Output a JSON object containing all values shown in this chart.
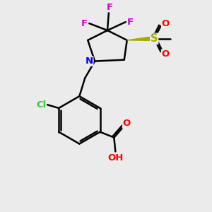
{
  "bg_color": "#ebebeb",
  "bond_color": "#000000",
  "atom_colors": {
    "F": "#cc00cc",
    "Cl": "#44bb44",
    "N": "#0000ee",
    "O": "#ff0000",
    "S": "#aaaa00",
    "C": "#000000"
  },
  "figsize": [
    3.0,
    3.0
  ],
  "dpi": 100,
  "fs": 9.5
}
